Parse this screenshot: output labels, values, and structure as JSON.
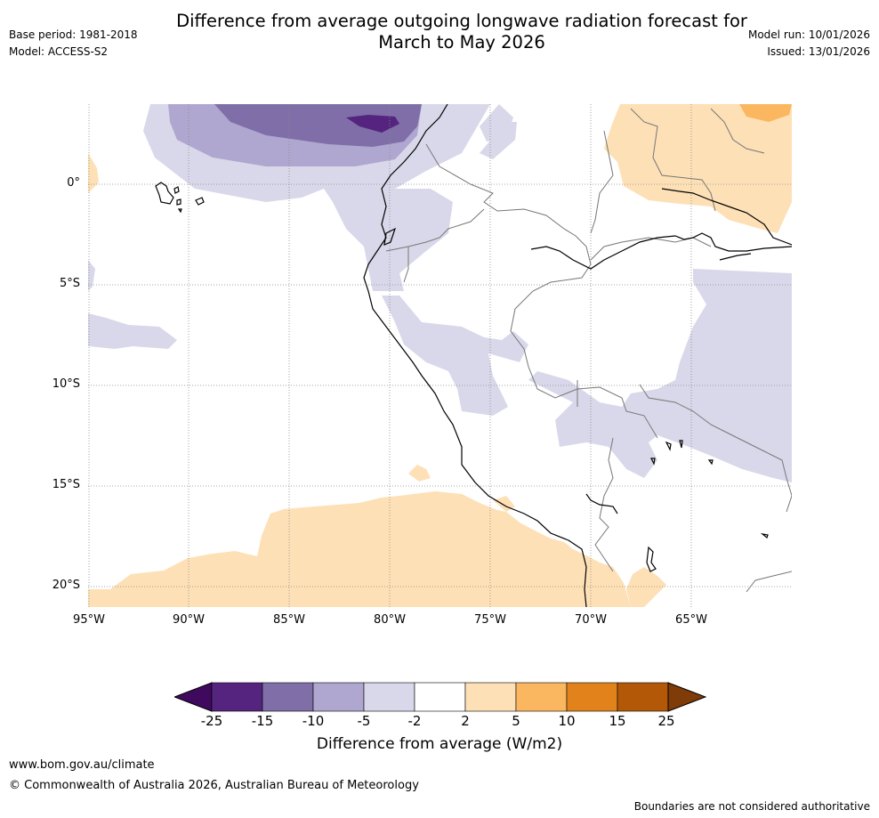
{
  "header": {
    "title_line1": "Difference from average outgoing longwave radiation forecast for",
    "title_line2": "March to May 2026",
    "base_period": "Base period: 1981-2018",
    "model": "Model: ACCESS-S2",
    "model_run": "Model run: 10/01/2026",
    "issued": "Issued: 13/01/2026"
  },
  "map": {
    "lat_labels": [
      "0°",
      "5°S",
      "10°S",
      "15°S",
      "20°S"
    ],
    "lon_labels": [
      "95°W",
      "90°W",
      "85°W",
      "80°W",
      "75°W",
      "70°W",
      "65°W"
    ]
  },
  "colorbar": {
    "title": "Difference from average (W/m2)",
    "tick_labels": [
      "-25",
      "-15",
      "-10",
      "-5",
      "-2",
      "2",
      "5",
      "10",
      "15",
      "25"
    ],
    "colors": [
      "#3f0a5e",
      "#55247f",
      "#7f6ea7",
      "#afa7cf",
      "#d8d8ea",
      "#ffffff",
      "#fde0b6",
      "#fbb760",
      "#e1831a",
      "#b35806",
      "#7f3b08"
    ]
  },
  "footer": {
    "website": "www.bom.gov.au/climate",
    "copyright": "© Commonwealth of Australia 2026, Australian Bureau of Meteorology",
    "disclaimer": "Boundaries are not considered authoritative"
  }
}
